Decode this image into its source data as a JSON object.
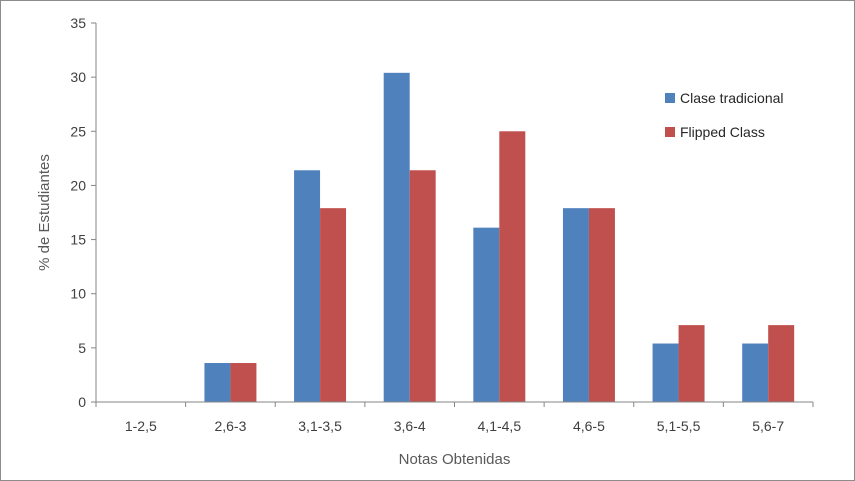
{
  "chart_data": {
    "type": "bar",
    "title": "",
    "xlabel": "Notas Obtenidas",
    "ylabel": "% de Estudiantes",
    "ylim": [
      0,
      35
    ],
    "yticks": [
      0,
      5,
      10,
      15,
      20,
      25,
      30,
      35
    ],
    "grid": false,
    "legend_position": "right",
    "categories": [
      "1-2,5",
      "2,6-3",
      "3,1-3,5",
      "3,6-4",
      "4,1-4,5",
      "4,6-5",
      "5,1-5,5",
      "5,6-7"
    ],
    "series": [
      {
        "name": "Clase tradicional",
        "color": "#4f81bd",
        "values": [
          0,
          3.6,
          21.4,
          30.4,
          16.1,
          17.9,
          5.4,
          5.4
        ]
      },
      {
        "name": "Flipped Class",
        "color": "#c0504d",
        "values": [
          0,
          3.6,
          17.9,
          21.4,
          25.0,
          17.9,
          7.1,
          7.1
        ]
      }
    ]
  }
}
